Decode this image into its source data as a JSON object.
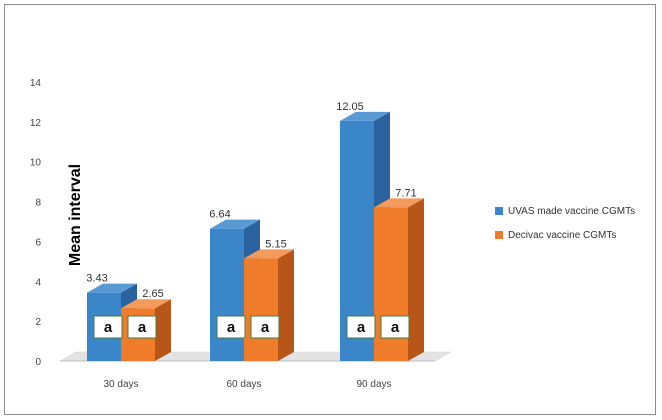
{
  "chart_data": {
    "type": "bar",
    "title": "",
    "xlabel": "",
    "ylabel": "Mean interval",
    "ylim": [
      0,
      14
    ],
    "yticks": [
      0,
      2,
      4,
      6,
      8,
      10,
      12,
      14
    ],
    "grid": false,
    "legend_position": "right",
    "categories": [
      "30 days",
      "60 days",
      "90 days"
    ],
    "series": [
      {
        "name": "UVAS made vaccine CGMTs",
        "values": [
          3.43,
          6.64,
          12.05
        ],
        "labels": [
          "3.43",
          "6.64",
          "12.05"
        ],
        "letters": [
          "a",
          "a",
          "a"
        ],
        "color": "#3b86c9",
        "side_color": "#2a62a0",
        "top_color": "#5a9ad4"
      },
      {
        "name": "Decivac vaccine CGMTs",
        "values": [
          2.65,
          5.15,
          7.71
        ],
        "labels": [
          "2.65",
          "5.15",
          "7.71"
        ],
        "letters": [
          "a",
          "a",
          "a"
        ],
        "color": "#ef7b2b",
        "side_color": "#b8561a",
        "top_color": "#f39a5c"
      }
    ],
    "style": "3d-clustered-column"
  }
}
